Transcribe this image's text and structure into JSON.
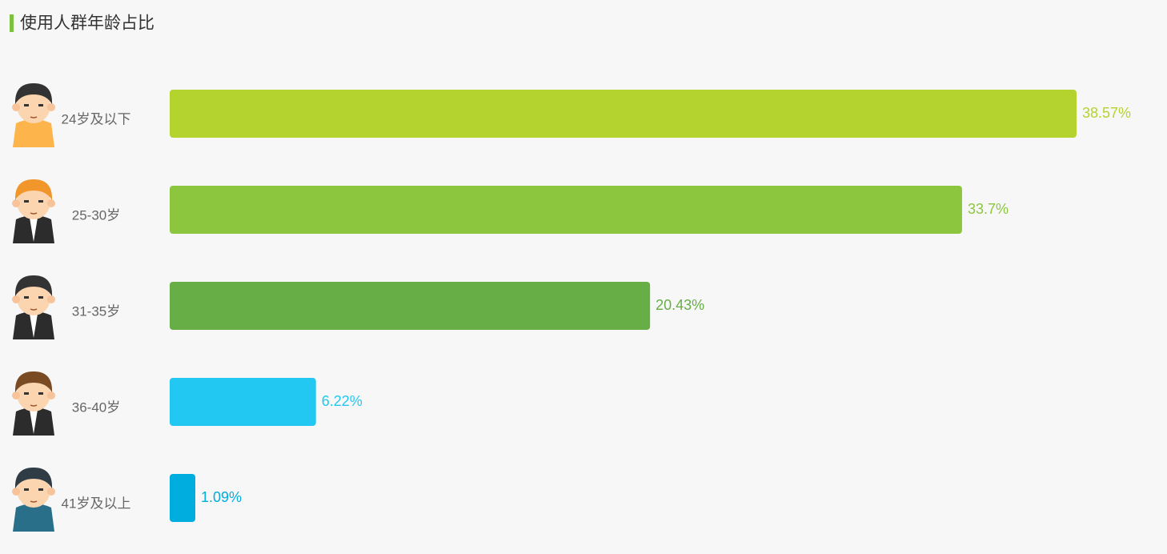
{
  "chart_data": {
    "type": "hbar",
    "title": "使用人群年龄占比",
    "categories": [
      "24岁及以下",
      "25-30岁",
      "31-35岁",
      "36-40岁",
      "41岁及以上"
    ],
    "values": [
      38.57,
      33.7,
      20.43,
      6.22,
      1.09
    ],
    "value_labels": [
      "38.57%",
      "33.7%",
      "20.43%",
      "6.22%",
      "1.09%"
    ],
    "colors": [
      "#b4d32f",
      "#8cc63f",
      "#66ae45",
      "#22c8f2",
      "#00addf"
    ]
  }
}
